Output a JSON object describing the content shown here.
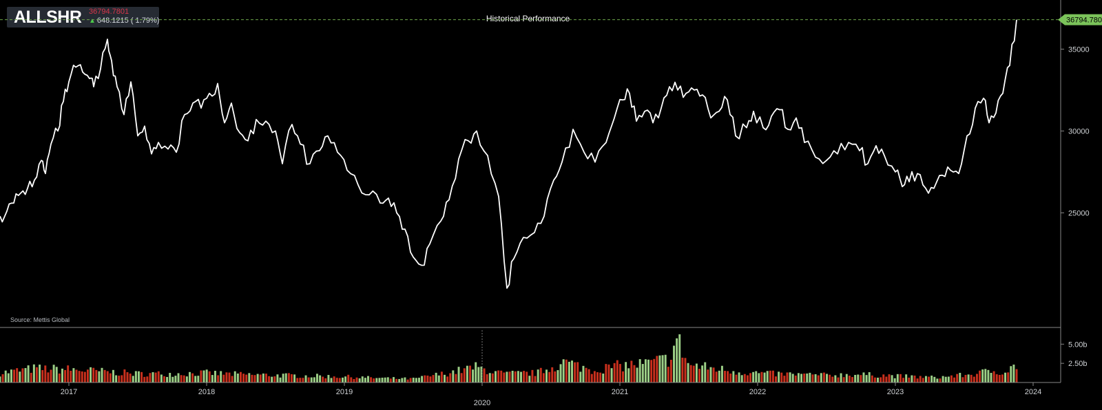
{
  "ticker": {
    "symbol": "ALLSHR",
    "price": "36794.7801",
    "change": "648.1215 ( 1.79%)"
  },
  "title": "Historical Performance",
  "source": "Source: Mettis Global",
  "last_price_label": "36794.780",
  "colors": {
    "line": "#ffffff",
    "vol_up": "#9ccf86",
    "vol_down": "#c9301d",
    "grid_dash": "#6fa84c",
    "price_tag": "#7bc35a"
  },
  "chart_data": {
    "type": "line",
    "title": "Historical Performance",
    "price_axis": {
      "ylim": [
        18000,
        38000
      ],
      "ticks": [
        "25000",
        "30000",
        "35000"
      ],
      "tick_values": [
        25000,
        30000,
        35000
      ]
    },
    "volume_axis": {
      "ylim": [
        0,
        7.0
      ],
      "ticks": [
        "2.50b",
        "5.00b"
      ],
      "tick_values": [
        2.5,
        5.0
      ]
    },
    "x_axis": {
      "range": [
        2016.5,
        2024.2
      ],
      "ticks": [
        "2017",
        "2018",
        "2019",
        "2020",
        "2021",
        "2022",
        "2023",
        "2024"
      ],
      "tick_values": [
        2017,
        2018,
        2019,
        2020,
        2021,
        2022,
        2023,
        2024
      ]
    },
    "last_value": 36794.78,
    "price_series": {
      "name": "ALLSHR",
      "points": [
        [
          2016.5,
          24800
        ],
        [
          2016.55,
          25100
        ],
        [
          2016.6,
          25600
        ],
        [
          2016.65,
          26200
        ],
        [
          2016.7,
          26500
        ],
        [
          2016.75,
          27000
        ],
        [
          2016.8,
          28200
        ],
        [
          2016.83,
          27400
        ],
        [
          2016.87,
          29200
        ],
        [
          2016.92,
          30000
        ],
        [
          2016.96,
          31800
        ],
        [
          2017.0,
          33000
        ],
        [
          2017.05,
          33900
        ],
        [
          2017.1,
          33600
        ],
        [
          2017.15,
          33200
        ],
        [
          2017.18,
          32700
        ],
        [
          2017.23,
          33800
        ],
        [
          2017.28,
          35600
        ],
        [
          2017.31,
          34300
        ],
        [
          2017.35,
          32700
        ],
        [
          2017.4,
          31000
        ],
        [
          2017.45,
          33000
        ],
        [
          2017.5,
          29700
        ],
        [
          2017.55,
          30300
        ],
        [
          2017.6,
          28600
        ],
        [
          2017.65,
          29300
        ],
        [
          2017.72,
          28900
        ],
        [
          2017.78,
          28700
        ],
        [
          2017.84,
          31000
        ],
        [
          2017.9,
          31700
        ],
        [
          2017.96,
          31400
        ],
        [
          2018.02,
          32300
        ],
        [
          2018.08,
          32900
        ],
        [
          2018.13,
          30500
        ],
        [
          2018.18,
          31700
        ],
        [
          2018.24,
          29900
        ],
        [
          2018.3,
          29400
        ],
        [
          2018.36,
          30700
        ],
        [
          2018.43,
          30600
        ],
        [
          2018.5,
          30000
        ],
        [
          2018.55,
          28000
        ],
        [
          2018.62,
          30400
        ],
        [
          2018.68,
          29200
        ],
        [
          2018.75,
          28000
        ],
        [
          2018.82,
          28800
        ],
        [
          2018.88,
          29700
        ],
        [
          2018.95,
          28700
        ],
        [
          2019.02,
          27600
        ],
        [
          2019.1,
          26700
        ],
        [
          2019.18,
          26100
        ],
        [
          2019.26,
          25600
        ],
        [
          2019.32,
          25900
        ],
        [
          2019.38,
          25000
        ],
        [
          2019.44,
          24000
        ],
        [
          2019.5,
          22300
        ],
        [
          2019.56,
          21800
        ],
        [
          2019.62,
          23100
        ],
        [
          2019.7,
          24500
        ],
        [
          2019.76,
          25800
        ],
        [
          2019.83,
          28300
        ],
        [
          2019.9,
          29400
        ],
        [
          2019.96,
          30000
        ],
        [
          2020.04,
          28500
        ],
        [
          2020.12,
          26000
        ],
        [
          2020.18,
          20400
        ],
        [
          2020.23,
          22200
        ],
        [
          2020.3,
          23500
        ],
        [
          2020.38,
          23800
        ],
        [
          2020.45,
          24800
        ],
        [
          2020.52,
          27000
        ],
        [
          2020.58,
          28100
        ],
        [
          2020.66,
          30100
        ],
        [
          2020.74,
          28700
        ],
        [
          2020.82,
          28100
        ],
        [
          2020.9,
          29300
        ],
        [
          2020.96,
          30800
        ],
        [
          2021.02,
          31900
        ],
        [
          2021.07,
          32300
        ],
        [
          2021.12,
          30600
        ],
        [
          2021.18,
          31200
        ],
        [
          2021.24,
          30500
        ],
        [
          2021.3,
          31400
        ],
        [
          2021.36,
          32700
        ],
        [
          2021.42,
          32500
        ],
        [
          2021.48,
          32300
        ],
        [
          2021.54,
          32500
        ],
        [
          2021.6,
          32200
        ],
        [
          2021.66,
          30800
        ],
        [
          2021.72,
          31200
        ],
        [
          2021.78,
          31900
        ],
        [
          2021.84,
          29700
        ],
        [
          2021.92,
          30200
        ],
        [
          2021.97,
          31200
        ],
        [
          2022.04,
          30200
        ],
        [
          2022.1,
          30900
        ],
        [
          2022.16,
          31300
        ],
        [
          2022.22,
          30100
        ],
        [
          2022.28,
          30800
        ],
        [
          2022.34,
          29300
        ],
        [
          2022.42,
          28400
        ],
        [
          2022.5,
          28200
        ],
        [
          2022.58,
          28600
        ],
        [
          2022.66,
          29300
        ],
        [
          2022.74,
          28800
        ],
        [
          2022.8,
          28000
        ],
        [
          2022.86,
          29100
        ],
        [
          2022.92,
          28500
        ],
        [
          2023.0,
          27500
        ],
        [
          2023.05,
          26600
        ],
        [
          2023.1,
          26900
        ],
        [
          2023.16,
          27400
        ],
        [
          2023.22,
          26500
        ],
        [
          2023.28,
          26500
        ],
        [
          2023.34,
          27300
        ],
        [
          2023.4,
          27600
        ],
        [
          2023.46,
          27400
        ],
        [
          2023.52,
          29700
        ],
        [
          2023.58,
          31400
        ],
        [
          2023.64,
          32000
        ],
        [
          2023.68,
          30500
        ],
        [
          2023.73,
          31100
        ],
        [
          2023.78,
          32300
        ],
        [
          2023.83,
          34000
        ],
        [
          2023.88,
          36794.78
        ]
      ]
    },
    "volume_series": {
      "name": "Volume",
      "unit": "b",
      "bar_count": 360,
      "seed_levels": [
        [
          2016.5,
          1.3
        ],
        [
          2016.75,
          1.9
        ],
        [
          2017.0,
          1.8
        ],
        [
          2017.25,
          1.5
        ],
        [
          2017.5,
          1.2
        ],
        [
          2017.75,
          1.2
        ],
        [
          2018.0,
          1.3
        ],
        [
          2018.25,
          1.1
        ],
        [
          2018.5,
          1.0
        ],
        [
          2018.75,
          0.9
        ],
        [
          2019.0,
          0.8
        ],
        [
          2019.25,
          0.6
        ],
        [
          2019.5,
          0.5
        ],
        [
          2019.75,
          1.3
        ],
        [
          2019.95,
          2.1
        ],
        [
          2020.15,
          1.2
        ],
        [
          2020.4,
          1.3
        ],
        [
          2020.6,
          2.8
        ],
        [
          2020.8,
          1.7
        ],
        [
          2021.0,
          2.3
        ],
        [
          2021.2,
          2.6
        ],
        [
          2021.35,
          3.2
        ],
        [
          2021.42,
          5.8
        ],
        [
          2021.5,
          2.4
        ],
        [
          2021.7,
          1.9
        ],
        [
          2021.9,
          1.4
        ],
        [
          2022.1,
          1.2
        ],
        [
          2022.3,
          1.1
        ],
        [
          2022.5,
          1.0
        ],
        [
          2022.7,
          1.1
        ],
        [
          2022.9,
          1.0
        ],
        [
          2023.1,
          0.8
        ],
        [
          2023.3,
          0.7
        ],
        [
          2023.55,
          1.1
        ],
        [
          2023.7,
          1.6
        ],
        [
          2023.8,
          1.5
        ],
        [
          2023.88,
          2.4
        ]
      ]
    }
  }
}
